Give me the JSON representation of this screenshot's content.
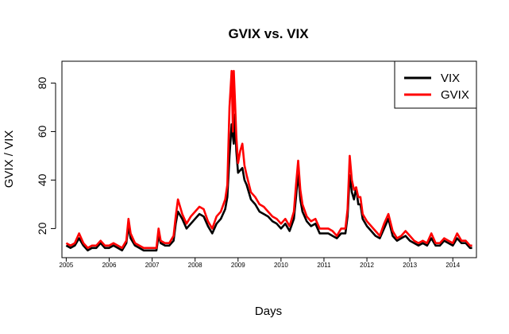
{
  "chart_data": {
    "type": "line",
    "title": "GVIX vs. VIX",
    "xlabel": "Days",
    "ylabel": "GVIX / VIX",
    "xlim": [
      2004.9,
      2014.55
    ],
    "ylim": [
      8,
      89
    ],
    "yticks": [
      20,
      40,
      60,
      80
    ],
    "xticks": [
      "2005",
      "2006",
      "2007",
      "2008",
      "2009",
      "2010",
      "2011",
      "2012",
      "2013",
      "2014"
    ],
    "legend_position": "top-right",
    "grid": false,
    "series": [
      {
        "name": "VIX",
        "color": "#000000",
        "x": [
          2005.0,
          2005.1,
          2005.2,
          2005.3,
          2005.4,
          2005.5,
          2005.6,
          2005.7,
          2005.8,
          2005.9,
          2006.0,
          2006.1,
          2006.2,
          2006.3,
          2006.4,
          2006.45,
          2006.5,
          2006.6,
          2006.7,
          2006.8,
          2006.9,
          2007.0,
          2007.1,
          2007.15,
          2007.2,
          2007.3,
          2007.4,
          2007.5,
          2007.55,
          2007.6,
          2007.7,
          2007.8,
          2007.9,
          2008.0,
          2008.1,
          2008.2,
          2008.3,
          2008.4,
          2008.5,
          2008.6,
          2008.7,
          2008.75,
          2008.8,
          2008.85,
          2008.88,
          2008.9,
          2008.93,
          2008.96,
          2009.0,
          2009.05,
          2009.1,
          2009.15,
          2009.2,
          2009.3,
          2009.4,
          2009.5,
          2009.6,
          2009.7,
          2009.8,
          2009.9,
          2010.0,
          2010.1,
          2010.2,
          2010.3,
          2010.35,
          2010.4,
          2010.45,
          2010.5,
          2010.6,
          2010.7,
          2010.8,
          2010.9,
          2011.0,
          2011.1,
          2011.2,
          2011.3,
          2011.4,
          2011.5,
          2011.55,
          2011.6,
          2011.65,
          2011.7,
          2011.75,
          2011.8,
          2011.85,
          2011.9,
          2012.0,
          2012.1,
          2012.2,
          2012.3,
          2012.4,
          2012.5,
          2012.6,
          2012.7,
          2012.8,
          2012.9,
          2013.0,
          2013.1,
          2013.2,
          2013.3,
          2013.4,
          2013.5,
          2013.6,
          2013.7,
          2013.8,
          2013.9,
          2014.0,
          2014.1,
          2014.2,
          2014.3,
          2014.4,
          2014.45
        ],
        "values": [
          13,
          12,
          13,
          16,
          13,
          11,
          12,
          12,
          14,
          12,
          12,
          13,
          12,
          11,
          14,
          21,
          16,
          13,
          12,
          11,
          11,
          11,
          11,
          17,
          14,
          13,
          13,
          15,
          22,
          27,
          24,
          20,
          22,
          24,
          26,
          25,
          21,
          18,
          22,
          24,
          28,
          33,
          50,
          63,
          58,
          55,
          67,
          52,
          43,
          44,
          45,
          40,
          38,
          32,
          30,
          27,
          26,
          25,
          23,
          22,
          20,
          22,
          19,
          24,
          33,
          43,
          32,
          27,
          23,
          21,
          22,
          18,
          18,
          18,
          17,
          16,
          18,
          18,
          25,
          42,
          35,
          32,
          37,
          30,
          30,
          24,
          21,
          19,
          17,
          16,
          20,
          24,
          17,
          15,
          16,
          17,
          15,
          14,
          13,
          14,
          13,
          16,
          13,
          13,
          15,
          14,
          13,
          16,
          14,
          14,
          12,
          12
        ]
      },
      {
        "name": "GVIX",
        "color": "#ff0000",
        "x": [
          2005.0,
          2005.1,
          2005.2,
          2005.3,
          2005.4,
          2005.5,
          2005.6,
          2005.7,
          2005.8,
          2005.9,
          2006.0,
          2006.1,
          2006.2,
          2006.3,
          2006.4,
          2006.45,
          2006.5,
          2006.6,
          2006.7,
          2006.8,
          2006.9,
          2007.0,
          2007.1,
          2007.15,
          2007.2,
          2007.3,
          2007.4,
          2007.5,
          2007.55,
          2007.6,
          2007.7,
          2007.8,
          2007.9,
          2008.0,
          2008.1,
          2008.2,
          2008.3,
          2008.4,
          2008.5,
          2008.6,
          2008.7,
          2008.75,
          2008.8,
          2008.85,
          2008.88,
          2008.9,
          2008.93,
          2008.96,
          2009.0,
          2009.05,
          2009.1,
          2009.15,
          2009.2,
          2009.3,
          2009.4,
          2009.5,
          2009.6,
          2009.7,
          2009.8,
          2009.9,
          2010.0,
          2010.1,
          2010.2,
          2010.3,
          2010.35,
          2010.4,
          2010.45,
          2010.5,
          2010.6,
          2010.7,
          2010.8,
          2010.9,
          2011.0,
          2011.1,
          2011.2,
          2011.3,
          2011.4,
          2011.5,
          2011.55,
          2011.6,
          2011.65,
          2011.7,
          2011.75,
          2011.8,
          2011.85,
          2011.9,
          2012.0,
          2012.1,
          2012.2,
          2012.3,
          2012.4,
          2012.5,
          2012.6,
          2012.7,
          2012.8,
          2012.9,
          2013.0,
          2013.1,
          2013.2,
          2013.3,
          2013.4,
          2013.5,
          2013.6,
          2013.7,
          2013.8,
          2013.9,
          2014.0,
          2014.1,
          2014.2,
          2014.3,
          2014.4,
          2014.45
        ],
        "values": [
          14,
          13,
          14,
          18,
          14,
          12,
          13,
          13,
          15,
          13,
          13,
          14,
          13,
          12,
          15,
          24,
          18,
          14,
          13,
          12,
          12,
          12,
          12,
          20,
          15,
          14,
          14,
          17,
          25,
          32,
          26,
          22,
          25,
          27,
          29,
          28,
          23,
          20,
          25,
          27,
          32,
          38,
          70,
          85,
          60,
          85,
          72,
          58,
          47,
          52,
          55,
          46,
          42,
          35,
          33,
          30,
          29,
          27,
          25,
          24,
          22,
          24,
          21,
          27,
          38,
          48,
          36,
          30,
          25,
          23,
          24,
          20,
          20,
          20,
          19,
          17,
          20,
          20,
          28,
          50,
          40,
          36,
          37,
          33,
          33,
          26,
          23,
          21,
          19,
          17,
          22,
          26,
          19,
          16,
          17,
          19,
          17,
          15,
          14,
          15,
          14,
          18,
          14,
          14,
          16,
          15,
          14,
          18,
          15,
          15,
          13,
          13
        ]
      }
    ]
  }
}
